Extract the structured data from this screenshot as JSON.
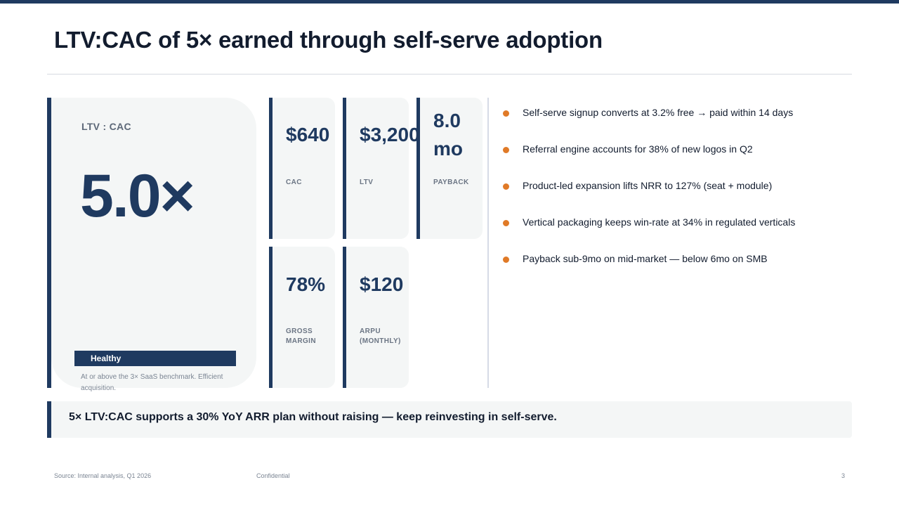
{
  "slide": {
    "title": "LTV:CAC of 5× earned through self-serve adoption",
    "page_number": "3"
  },
  "hero": {
    "label": "LTV : CAC",
    "value": "5.0×",
    "badge": "Healthy",
    "note": "At or above the 3× SaaS benchmark. Efficient acquisition."
  },
  "kpis": [
    {
      "value": "$640",
      "label": "CAC"
    },
    {
      "value": "$3,200",
      "label": "LTV"
    },
    {
      "value": "8.0 mo",
      "label": "PAYBACK"
    },
    {
      "value": "78%",
      "label": "GROSS MARGIN"
    },
    {
      "value": "$120",
      "label": "ARPU (MONTHLY)"
    }
  ],
  "bullets": [
    "Self-serve signup converts at 3.2% free → paid within 14 days",
    "Referral engine accounts for 38% of new logos in Q2",
    "Product-led expansion lifts NRR to 127% (seat + module)",
    "Vertical packaging keeps win-rate at 34% in regulated verticals",
    "Payback sub-9mo on mid-market — below 6mo on SMB"
  ],
  "callout": {
    "text": "5× LTV:CAC supports a 30% YoY ARR plan without raising — keep reinvesting in self-serve."
  },
  "footer": {
    "source": "Source: Internal analysis, Q1 2026",
    "confidential": "Confidential"
  },
  "colors": {
    "primary": "#1f3a60",
    "accent": "#e07a27",
    "card_bg": "#f4f6f6"
  }
}
